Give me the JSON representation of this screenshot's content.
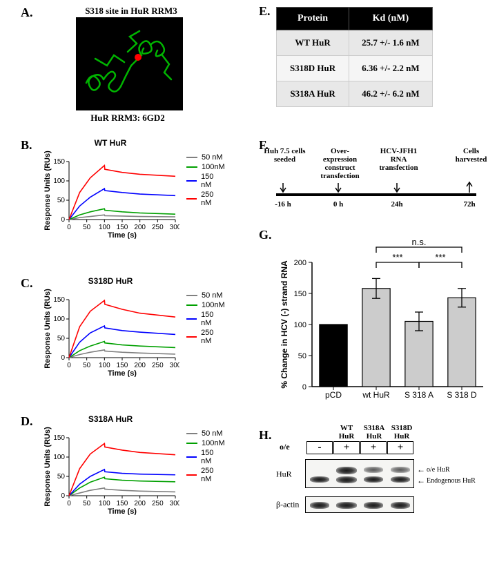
{
  "panelA": {
    "label": "A.",
    "title_top": "S318 site in HuR RRM3",
    "caption_bottom": "HuR RRM3: 6GD2",
    "structure_color": "#00b400",
    "highlight_color": "#ff0000",
    "background": "#000000"
  },
  "panelE": {
    "label": "E.",
    "headers": [
      "Protein",
      "Kd (nM)"
    ],
    "rows": [
      [
        "WT HuR",
        "25.7 +/- 1.6 nM"
      ],
      [
        "S318D HuR",
        "6.36 +/- 2.2 nM"
      ],
      [
        "S318A HuR",
        "46.2 +/- 6.2 nM"
      ]
    ],
    "header_bg": "#000000",
    "header_fg": "#ffffff",
    "row_bg_alt": [
      "#e8e8e8",
      "#f5f5f5",
      "#e8e8e8"
    ]
  },
  "sensorgrams": {
    "x_label": "Time (s)",
    "y_label": "Response Units (RUs)",
    "xlim": [
      0,
      300
    ],
    "xtick_step": 50,
    "ylim": [
      0,
      150
    ],
    "ytick_step": 50,
    "legend_items": [
      {
        "label": "50 nM",
        "color": "#808080"
      },
      {
        "label": "100nM",
        "color": "#00a000"
      },
      {
        "label": "150 nM",
        "color": "#0000ff"
      },
      {
        "label": "250 nM",
        "color": "#ff0000"
      }
    ],
    "charts": [
      {
        "label": "B.",
        "title": "WT HuR",
        "series": {
          "50": [
            [
              0,
              0
            ],
            [
              30,
              5
            ],
            [
              60,
              8
            ],
            [
              100,
              12
            ],
            [
              101,
              10
            ],
            [
              150,
              9
            ],
            [
              200,
              8
            ],
            [
              300,
              7
            ]
          ],
          "100": [
            [
              0,
              0
            ],
            [
              30,
              12
            ],
            [
              60,
              20
            ],
            [
              100,
              28
            ],
            [
              101,
              24
            ],
            [
              150,
              20
            ],
            [
              200,
              17
            ],
            [
              300,
              14
            ]
          ],
          "150": [
            [
              0,
              0
            ],
            [
              30,
              35
            ],
            [
              60,
              58
            ],
            [
              100,
              80
            ],
            [
              101,
              75
            ],
            [
              150,
              70
            ],
            [
              200,
              66
            ],
            [
              300,
              62
            ]
          ],
          "250": [
            [
              0,
              0
            ],
            [
              30,
              70
            ],
            [
              60,
              108
            ],
            [
              100,
              140
            ],
            [
              101,
              130
            ],
            [
              150,
              122
            ],
            [
              200,
              117
            ],
            [
              300,
              112
            ]
          ]
        }
      },
      {
        "label": "C.",
        "title": "S318D HuR",
        "series": {
          "50": [
            [
              0,
              0
            ],
            [
              30,
              8
            ],
            [
              60,
              14
            ],
            [
              100,
              20
            ],
            [
              101,
              17
            ],
            [
              150,
              14
            ],
            [
              200,
              12
            ],
            [
              300,
              9
            ]
          ],
          "100": [
            [
              0,
              0
            ],
            [
              30,
              18
            ],
            [
              60,
              30
            ],
            [
              100,
              42
            ],
            [
              101,
              38
            ],
            [
              150,
              33
            ],
            [
              200,
              30
            ],
            [
              300,
              26
            ]
          ],
          "150": [
            [
              0,
              0
            ],
            [
              30,
              40
            ],
            [
              60,
              64
            ],
            [
              100,
              82
            ],
            [
              101,
              77
            ],
            [
              150,
              70
            ],
            [
              200,
              66
            ],
            [
              300,
              60
            ]
          ],
          "250": [
            [
              0,
              0
            ],
            [
              30,
              80
            ],
            [
              60,
              120
            ],
            [
              100,
              148
            ],
            [
              101,
              138
            ],
            [
              150,
              125
            ],
            [
              200,
              115
            ],
            [
              300,
              105
            ]
          ]
        }
      },
      {
        "label": "D.",
        "title": "S318A HuR",
        "series": {
          "50": [
            [
              0,
              0
            ],
            [
              30,
              7
            ],
            [
              60,
              14
            ],
            [
              100,
              20
            ],
            [
              101,
              17
            ],
            [
              150,
              14
            ],
            [
              200,
              12
            ],
            [
              300,
              10
            ]
          ],
          "100": [
            [
              0,
              0
            ],
            [
              30,
              20
            ],
            [
              60,
              35
            ],
            [
              100,
              48
            ],
            [
              101,
              44
            ],
            [
              150,
              40
            ],
            [
              200,
              38
            ],
            [
              300,
              36
            ]
          ],
          "150": [
            [
              0,
              0
            ],
            [
              30,
              30
            ],
            [
              60,
              50
            ],
            [
              100,
              68
            ],
            [
              101,
              62
            ],
            [
              150,
              58
            ],
            [
              200,
              56
            ],
            [
              300,
              54
            ]
          ],
          "250": [
            [
              0,
              0
            ],
            [
              30,
              70
            ],
            [
              60,
              108
            ],
            [
              100,
              135
            ],
            [
              101,
              126
            ],
            [
              150,
              118
            ],
            [
              200,
              112
            ],
            [
              300,
              106
            ]
          ]
        }
      }
    ]
  },
  "panelF": {
    "label": "F.",
    "events": [
      {
        "time": "-16 h",
        "label": "Huh 7.5 cells\nseeded",
        "arrow": "down"
      },
      {
        "time": "0 h",
        "label": "Over-\nexpression\nconstruct\ntransfection",
        "arrow": "down"
      },
      {
        "time": "24h",
        "label": "HCV-JFH1\nRNA\ntransfection",
        "arrow": "down"
      },
      {
        "time": "72h",
        "label": "Cells\nharvested",
        "arrow": "up"
      }
    ],
    "line_color": "#000000"
  },
  "panelG": {
    "label": "G.",
    "y_label": "% Change in HCV (-) strand RNA",
    "ylim": [
      0,
      200
    ],
    "ytick_step": 50,
    "bars": [
      {
        "label": "pCD",
        "value": 100,
        "err": 0,
        "color": "#000000"
      },
      {
        "label": "wt HuR",
        "value": 158,
        "err": 16,
        "color": "#cccccc"
      },
      {
        "label": "S 318 A",
        "value": 105,
        "err": 15,
        "color": "#cccccc"
      },
      {
        "label": "S 318 D",
        "value": 143,
        "err": 15,
        "color": "#cccccc"
      }
    ],
    "sig": [
      {
        "from": 1,
        "to": 2,
        "label": "***"
      },
      {
        "from": 2,
        "to": 3,
        "label": "***"
      },
      {
        "from": 1,
        "to": 3,
        "label": "n.s."
      }
    ],
    "bar_border": "#000000"
  },
  "panelH": {
    "label": "H.",
    "col_labels": [
      "",
      "WT\nHuR",
      "S318A\nHuR",
      "S318D\nHuR"
    ],
    "oe_label": "o/e",
    "oe_values": [
      "-",
      "+",
      "+",
      "+"
    ],
    "rows": [
      {
        "label": "HuR",
        "height": 42,
        "annotations": [
          "o/e HuR",
          "Endogenous HuR"
        ]
      },
      {
        "label": "β-actin",
        "height": 24,
        "annotations": []
      }
    ],
    "band_color": "#222222"
  }
}
